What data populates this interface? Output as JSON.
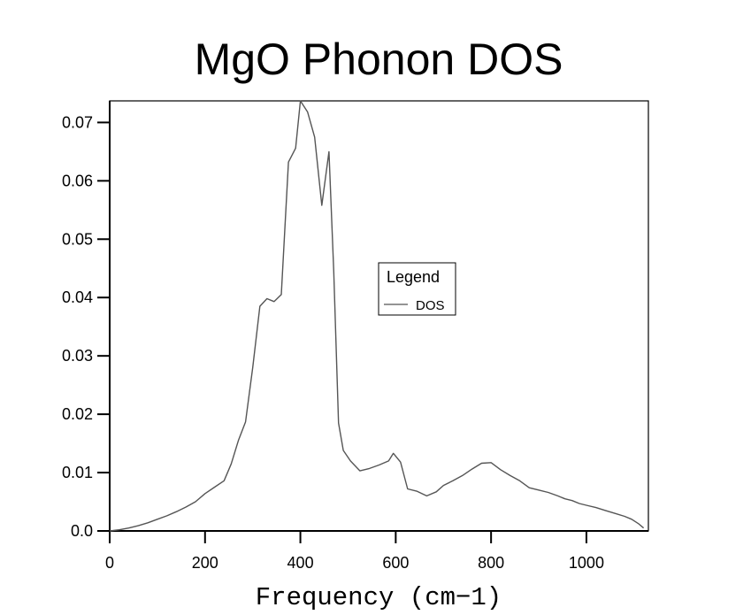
{
  "chart_data": {
    "type": "line",
    "title": "MgO Phonon DOS",
    "xlabel": "Frequency (cm−1)",
    "ylabel": "",
    "xlim": [
      0,
      1130
    ],
    "ylim": [
      0,
      0.0737
    ],
    "grid": false,
    "xticks": [
      0,
      200,
      400,
      600,
      800,
      1000
    ],
    "xtick_labels": [
      "0",
      "200",
      "400",
      "600",
      "800",
      "1000"
    ],
    "yticks": [
      0.0,
      0.01,
      0.02,
      0.03,
      0.04,
      0.05,
      0.06,
      0.07
    ],
    "ytick_labels": [
      "0.0",
      "0.01",
      "0.02",
      "0.03",
      "0.04",
      "0.05",
      "0.06",
      "0.07"
    ],
    "legend": {
      "title": "Legend",
      "placement": "center-right",
      "entries": [
        "DOS"
      ]
    },
    "series": [
      {
        "name": "DOS",
        "color": "#555555",
        "x": [
          0,
          20,
          40,
          60,
          80,
          100,
          120,
          140,
          160,
          180,
          200,
          220,
          240,
          255,
          270,
          285,
          300,
          315,
          330,
          345,
          360,
          375,
          390,
          400,
          415,
          430,
          445,
          460,
          470,
          480,
          490,
          505,
          525,
          545,
          565,
          585,
          595,
          610,
          625,
          645,
          665,
          685,
          700,
          720,
          740,
          760,
          780,
          800,
          820,
          840,
          860,
          880,
          900,
          920,
          940,
          955,
          970,
          985,
          1000,
          1020,
          1040,
          1060,
          1080,
          1095,
          1110,
          1120
        ],
        "y": [
          0.0,
          0.0002,
          0.0005,
          0.0009,
          0.0014,
          0.002,
          0.0026,
          0.0033,
          0.0041,
          0.005,
          0.0064,
          0.0075,
          0.0086,
          0.0115,
          0.0155,
          0.0187,
          0.028,
          0.0385,
          0.0398,
          0.0393,
          0.0405,
          0.0632,
          0.0656,
          0.0737,
          0.0718,
          0.0675,
          0.0558,
          0.065,
          0.0445,
          0.0185,
          0.0138,
          0.012,
          0.0103,
          0.0107,
          0.0113,
          0.012,
          0.0133,
          0.0118,
          0.0072,
          0.0068,
          0.006,
          0.0067,
          0.0078,
          0.0086,
          0.0095,
          0.0106,
          0.0116,
          0.0117,
          0.0105,
          0.0095,
          0.0086,
          0.0074,
          0.007,
          0.0066,
          0.006,
          0.0055,
          0.0052,
          0.0047,
          0.0044,
          0.004,
          0.0035,
          0.003,
          0.0025,
          0.002,
          0.0012,
          0.0005
        ]
      }
    ]
  }
}
